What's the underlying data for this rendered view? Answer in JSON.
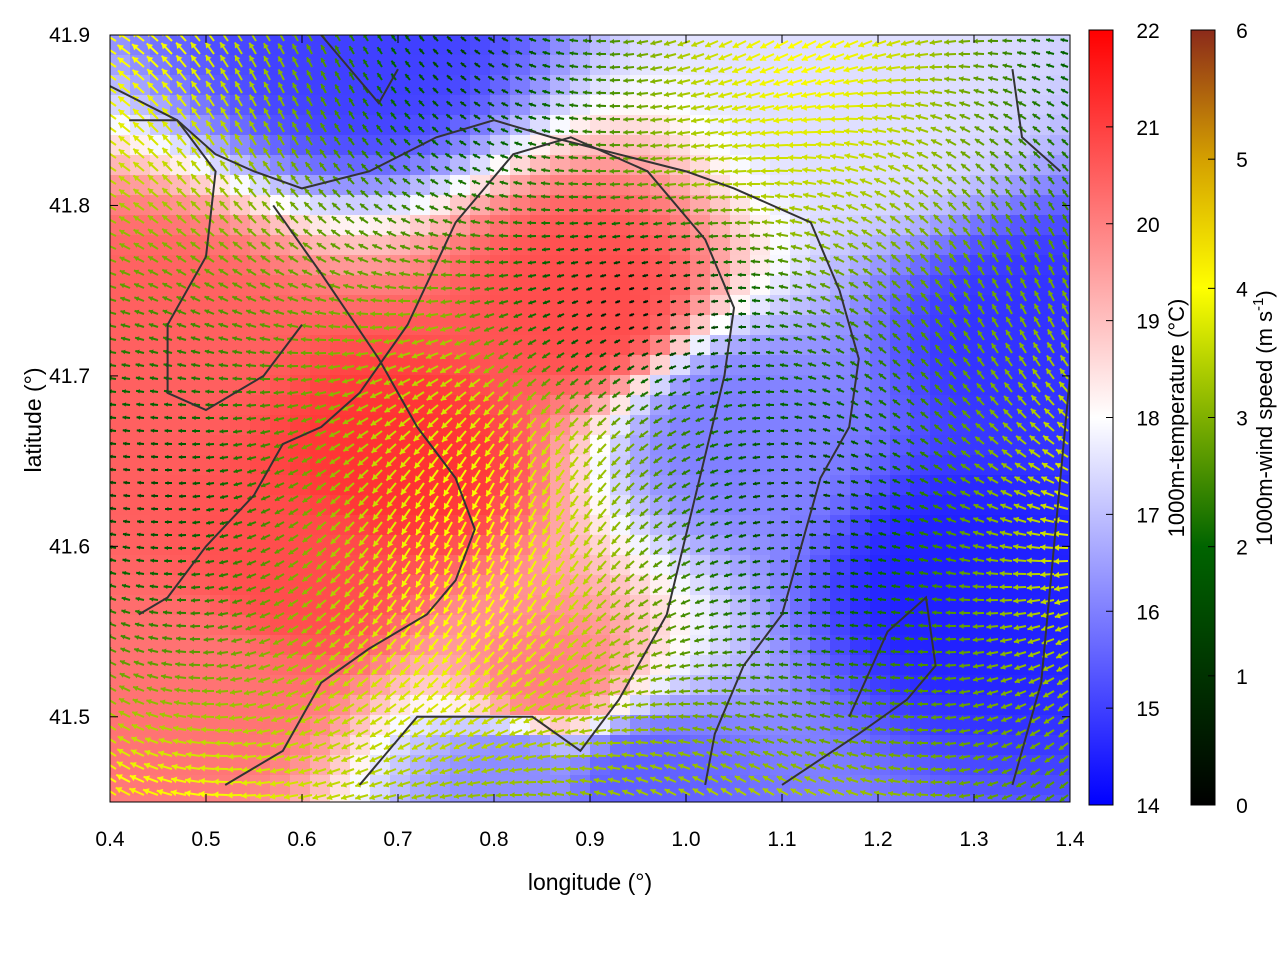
{
  "chart_data": {
    "type": "heatmap",
    "subtype": "temperature field with wind vectors and terrain contours",
    "xlabel": "longitude (°)",
    "ylabel": "latitude (°)",
    "xlim": [
      0.4,
      1.4
    ],
    "ylim": [
      41.45,
      41.9
    ],
    "x_ticks": [
      0.4,
      0.5,
      0.6,
      0.7,
      0.8,
      0.9,
      1.0,
      1.1,
      1.2,
      1.3,
      1.4
    ],
    "y_ticks": [
      41.5,
      41.6,
      41.7,
      41.8,
      41.9
    ],
    "grid": false,
    "temperature_colorbar": {
      "label": "1000m-temperature (°C)",
      "min": 14,
      "max": 22,
      "ticks": [
        14,
        15,
        16,
        17,
        18,
        19,
        20,
        21,
        22
      ],
      "colors": [
        "#0000ff",
        "#ffffff",
        "#ff0000"
      ]
    },
    "wind_colorbar": {
      "label_main": "1000m-wind speed (m s",
      "label_sup": "-1",
      "label_tail": ")",
      "min": 0,
      "max": 6,
      "ticks": [
        0,
        1,
        2,
        3,
        4,
        5,
        6
      ],
      "colors": [
        "#000000",
        "#006400",
        "#7fb000",
        "#ffff00",
        "#d4a000",
        "#8b2a1a"
      ]
    },
    "temperature_field_centers": [
      {
        "lon": 0.9,
        "lat": 41.74,
        "value": 20.8
      },
      {
        "lon": 0.7,
        "lat": 41.65,
        "value": 21.2
      },
      {
        "lon": 0.6,
        "lat": 41.58,
        "value": 20.8
      },
      {
        "lon": 0.45,
        "lat": 41.72,
        "value": 20.5
      },
      {
        "lon": 0.5,
        "lat": 41.52,
        "value": 20.2
      },
      {
        "lon": 0.85,
        "lat": 41.52,
        "value": 20.0
      },
      {
        "lon": 1.3,
        "lat": 41.58,
        "value": 14.5
      },
      {
        "lon": 1.37,
        "lat": 41.72,
        "value": 14.8
      },
      {
        "lon": 0.66,
        "lat": 41.89,
        "value": 15.0
      },
      {
        "lon": 1.05,
        "lat": 41.67,
        "value": 16.0
      },
      {
        "lon": 0.82,
        "lat": 41.47,
        "value": 16.2
      },
      {
        "lon": 0.95,
        "lat": 41.46,
        "value": 15.5
      },
      {
        "lon": 1.2,
        "lat": 41.86,
        "value": 17.5
      }
    ],
    "contours": [
      [
        [
          0.4,
          41.87
        ],
        [
          0.47,
          41.85
        ],
        [
          0.51,
          41.83
        ],
        [
          0.55,
          41.82
        ],
        [
          0.6,
          41.81
        ],
        [
          0.67,
          41.82
        ],
        [
          0.74,
          41.84
        ],
        [
          0.8,
          41.85
        ],
        [
          0.86,
          41.84
        ],
        [
          0.93,
          41.83
        ],
        [
          1.0,
          41.82
        ],
        [
          1.05,
          41.81
        ],
        [
          1.13,
          41.79
        ],
        [
          1.16,
          41.75
        ],
        [
          1.18,
          41.71
        ],
        [
          1.17,
          41.67
        ],
        [
          1.14,
          41.64
        ],
        [
          1.12,
          41.6
        ],
        [
          1.1,
          41.56
        ],
        [
          1.06,
          41.53
        ],
        [
          1.03,
          41.49
        ],
        [
          1.02,
          41.46
        ]
      ],
      [
        [
          0.66,
          41.46
        ],
        [
          0.72,
          41.5
        ],
        [
          0.78,
          41.5
        ],
        [
          0.84,
          41.5
        ],
        [
          0.89,
          41.48
        ],
        [
          0.93,
          41.51
        ],
        [
          0.98,
          41.56
        ],
        [
          1.01,
          41.63
        ],
        [
          1.04,
          41.7
        ],
        [
          1.05,
          41.74
        ],
        [
          1.02,
          41.78
        ],
        [
          0.96,
          41.82
        ],
        [
          0.88,
          41.84
        ],
        [
          0.82,
          41.83
        ],
        [
          0.76,
          41.79
        ],
        [
          0.71,
          41.73
        ],
        [
          0.66,
          41.69
        ],
        [
          0.62,
          41.67
        ],
        [
          0.58,
          41.66
        ],
        [
          0.55,
          41.63
        ],
        [
          0.5,
          41.6
        ],
        [
          0.46,
          41.57
        ],
        [
          0.43,
          41.56
        ]
      ],
      [
        [
          0.52,
          41.46
        ],
        [
          0.58,
          41.48
        ],
        [
          0.62,
          41.52
        ],
        [
          0.67,
          41.54
        ],
        [
          0.73,
          41.56
        ],
        [
          0.76,
          41.58
        ],
        [
          0.78,
          41.61
        ],
        [
          0.76,
          41.64
        ],
        [
          0.72,
          41.67
        ],
        [
          0.68,
          41.71
        ],
        [
          0.62,
          41.76
        ],
        [
          0.57,
          41.8
        ]
      ],
      [
        [
          0.42,
          41.85
        ],
        [
          0.47,
          41.85
        ],
        [
          0.51,
          41.82
        ],
        [
          0.5,
          41.77
        ],
        [
          0.46,
          41.73
        ],
        [
          0.46,
          41.69
        ],
        [
          0.5,
          41.68
        ],
        [
          0.56,
          41.7
        ],
        [
          0.6,
          41.73
        ]
      ],
      [
        [
          1.1,
          41.46
        ],
        [
          1.18,
          41.49
        ],
        [
          1.23,
          41.51
        ],
        [
          1.26,
          41.53
        ],
        [
          1.25,
          41.57
        ],
        [
          1.21,
          41.55
        ],
        [
          1.17,
          41.5
        ]
      ],
      [
        [
          1.34,
          41.88
        ],
        [
          1.35,
          41.84
        ],
        [
          1.39,
          41.82
        ]
      ],
      [
        [
          1.34,
          41.46
        ],
        [
          1.37,
          41.52
        ],
        [
          1.38,
          41.58
        ],
        [
          1.39,
          41.64
        ],
        [
          1.4,
          41.7
        ]
      ],
      [
        [
          0.62,
          41.9
        ],
        [
          0.65,
          41.88
        ],
        [
          0.68,
          41.86
        ],
        [
          0.7,
          41.88
        ]
      ]
    ]
  }
}
